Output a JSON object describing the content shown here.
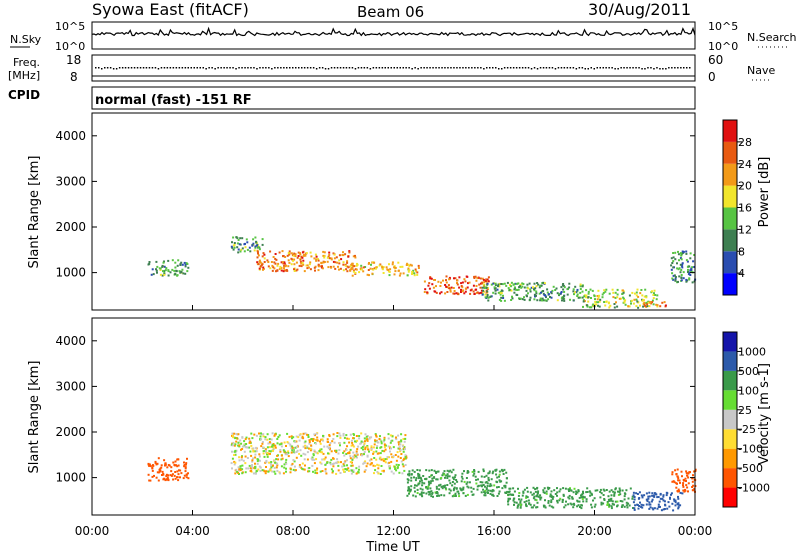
{
  "header": {
    "title": "Syowa East (fitACF)",
    "beam": "Beam 06",
    "date": "30/Aug/2011"
  },
  "noise_panel": {
    "label": "N.Sky",
    "right_label": "N.Search",
    "ticks": [
      "10^5",
      "10^0"
    ]
  },
  "freq_panel": {
    "label_line1": "Freq.",
    "label_line2": "[MHz]",
    "right_label": "Nave",
    "left_ticks": [
      "18",
      "8"
    ],
    "right_ticks": [
      "60",
      "0"
    ]
  },
  "cpid": {
    "label": "CPID",
    "mode": "normal (fast) -151 RF"
  },
  "colors": {
    "power": [
      "#0000ff",
      "#2a4db0",
      "#3e7f51",
      "#57c443",
      "#f1e52c",
      "#f39a18",
      "#e85a11",
      "#e01010"
    ],
    "velocity": [
      "#ff0000",
      "#ff5500",
      "#ff9900",
      "#ffdd33",
      "#c8c8c8",
      "#66dd33",
      "#3a9a4a",
      "#2c5aaa",
      "#1515aa"
    ],
    "velocity_band": "#c8c8c8"
  },
  "chart_data": [
    {
      "type": "heatmap",
      "quantity": "Power",
      "ylabel": "Slant Range [km]",
      "ylim": [
        180,
        4500
      ],
      "y_ticks": [
        "4000",
        "3000",
        "2000",
        "1000"
      ],
      "colorbar": {
        "label": "Power [dB]",
        "ticks": [
          "28",
          "24",
          "20",
          "16",
          "12",
          "8",
          "4"
        ],
        "range": [
          0,
          32
        ]
      },
      "echo_regions": [
        {
          "x": [
            2.2,
            3.8
          ],
          "y": [
            950,
            1300
          ],
          "level": 12
        },
        {
          "x": [
            5.5,
            6.8
          ],
          "y": [
            1450,
            1800
          ],
          "level": 12
        },
        {
          "x": [
            6.5,
            10.5
          ],
          "y": [
            1050,
            1500
          ],
          "level": 24
        },
        {
          "x": [
            10.2,
            13.0
          ],
          "y": [
            950,
            1250
          ],
          "level": 20
        },
        {
          "x": [
            13.2,
            15.8
          ],
          "y": [
            550,
            950
          ],
          "level": 26
        },
        {
          "x": [
            15.5,
            19.5
          ],
          "y": [
            400,
            800
          ],
          "level": 12
        },
        {
          "x": [
            19.5,
            22.5
          ],
          "y": [
            250,
            650
          ],
          "level": 16
        },
        {
          "x": [
            21.8,
            23.0
          ],
          "y": [
            280,
            380
          ],
          "level": 26
        },
        {
          "x": [
            23.0,
            24.0
          ],
          "y": [
            800,
            1500
          ],
          "level": 10
        }
      ]
    },
    {
      "type": "heatmap",
      "quantity": "Velocity",
      "ylabel": "Slant Range [km]",
      "ylim": [
        180,
        4500
      ],
      "y_ticks": [
        "4000",
        "3000",
        "2000",
        "1000"
      ],
      "xlabel": "Time UT",
      "x_ticks": [
        "00:00",
        "04:00",
        "08:00",
        "12:00",
        "16:00",
        "20:00",
        "00:00"
      ],
      "xlim": [
        0,
        24
      ],
      "colorbar": {
        "label": "Velocity [m s-1]",
        "ticks": [
          "1000",
          "500",
          "100",
          "25",
          "-25",
          "-100",
          "-500",
          "-1000"
        ]
      },
      "echo_regions": [
        {
          "x": [
            2.2,
            3.8
          ],
          "y": [
            950,
            1450
          ],
          "level": -300
        },
        {
          "x": [
            5.5,
            12.5
          ],
          "y": [
            1100,
            2000
          ],
          "level": 0
        },
        {
          "x": [
            12.5,
            16.5
          ],
          "y": [
            600,
            1200
          ],
          "level": 150
        },
        {
          "x": [
            16.5,
            21.5
          ],
          "y": [
            350,
            800
          ],
          "level": 150
        },
        {
          "x": [
            21.5,
            23.5
          ],
          "y": [
            300,
            700
          ],
          "level": 600
        },
        {
          "x": [
            23.0,
            24.0
          ],
          "y": [
            700,
            1200
          ],
          "level": -300
        }
      ]
    }
  ]
}
